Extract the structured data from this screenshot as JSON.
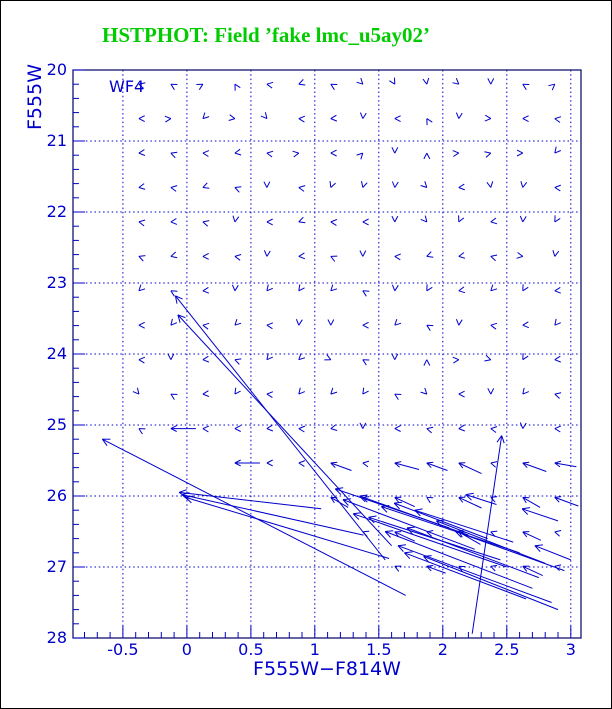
{
  "header": {
    "title": "HSTPHOT: Field ’fake lmc_u5ay02’",
    "title_color": "#00cc00"
  },
  "chart_data": {
    "type": "scatter",
    "subtype": "quiver-vector-field",
    "title": "HSTPHOT: Field ’fake lmc_u5ay02’",
    "xlabel": "F555W−F814W",
    "ylabel": "F555W",
    "annotation": "WF4",
    "xlim": [
      -0.89,
      3.08
    ],
    "ylim": [
      20,
      28
    ],
    "y_inverted": true,
    "grid": "dotted",
    "colors": {
      "accent_blue": "#0000cc",
      "title_green": "#00cc00",
      "frame": "#000066",
      "background": "#ffffff"
    },
    "x_ticks": {
      "major": [
        -0.5,
        0,
        0.5,
        1,
        1.5,
        2,
        2.5,
        3
      ],
      "labels": [
        "-0.5",
        "0",
        "0.5",
        "1",
        "1.5",
        "2",
        "2.5",
        "3"
      ],
      "minor_step": 0.1
    },
    "y_ticks": {
      "major": [
        20,
        21,
        22,
        23,
        24,
        25,
        26,
        27,
        28
      ],
      "labels": [
        "20",
        "21",
        "22",
        "23",
        "24",
        "25",
        "26",
        "27",
        "28"
      ],
      "minor_step": 0.2
    },
    "grid_x_lines": [
      -0.5,
      0,
      0.5,
      1,
      1.5,
      2,
      2.5,
      3
    ],
    "grid_y_lines": [
      20,
      21,
      22,
      23,
      24,
      25,
      26,
      27
    ],
    "vector_field": {
      "comment": "small recovered-photometry chevrons; col = col0 + col_step*(start+i); dirs entry = pointing angle deg (0=right,90=up) or [angle,shaft_px]",
      "col0": -0.375,
      "col_step": 0.25,
      "rows": [
        {
          "m": 20.2,
          "start": 0,
          "dirs": [
            165,
            150,
            30,
            120,
            170,
            200,
            150,
            315,
            300,
            280,
            320,
            270,
            150,
            40
          ]
        },
        {
          "m": 20.685,
          "start": 0,
          "dirs": [
            180,
            5,
            225,
            350,
            310,
            175,
            185,
            265,
            180,
            120,
            265,
            355,
            180,
            170
          ]
        },
        {
          "m": 21.17,
          "start": 0,
          "dirs": [
            185,
            160,
            175,
            190,
            170,
            10,
            180,
            45,
            270,
            90,
            5,
            15,
            0,
            230
          ]
        },
        {
          "m": 21.655,
          "start": 0,
          "dirs": [
            190,
            170,
            200,
            160,
            270,
            170,
            250,
            255,
            265,
            315,
            185,
            280,
            260,
            175
          ]
        },
        {
          "m": 22.14,
          "start": 0,
          "dirs": [
            170,
            185,
            165,
            260,
            180,
            200,
            175,
            180,
            270,
            310,
            245,
            190,
            265,
            240
          ]
        },
        {
          "m": 22.625,
          "start": 0,
          "dirs": [
            160,
            195,
            180,
            170,
            265,
            185,
            155,
            270,
            175,
            200,
            190,
            165,
            350,
            260
          ]
        },
        {
          "m": 23.11,
          "start": 0,
          "dirs": [
            225,
            150,
            185,
            265,
            230,
            235,
            225,
            150,
            265,
            240,
            190,
            225,
            240,
            185
          ]
        },
        {
          "m": 23.595,
          "start": 0,
          "dirs": [
            180,
            230,
            170,
            225,
            175,
            265,
            270,
            180,
            225,
            150,
            265,
            170,
            185,
            230
          ]
        },
        {
          "m": 24.08,
          "start": 0,
          "dirs": [
            175,
            270,
            185,
            160,
            230,
            225,
            335,
            150,
            270,
            90,
            5,
            345,
            240,
            185
          ]
        },
        {
          "m": 24.565,
          "start": 0,
          "dirs": [
            310,
            150,
            185,
            235,
            175,
            230,
            225,
            235,
            150,
            315,
            180,
            270,
            230,
            165
          ]
        },
        {
          "m": 25.05,
          "start": 0,
          "dirs": [
            150,
            [
              180,
              25
            ],
            175,
            180,
            185,
            175,
            190,
            270,
            180,
            165,
            185,
            170,
            265,
            175
          ]
        },
        {
          "m": 25.535,
          "start": 3,
          "dirs": [
            [
              180,
              25
            ],
            180,
            175,
            [
              160,
              22
            ],
            170,
            [
              165,
              25
            ],
            [
              160,
              22
            ],
            [
              155,
              25
            ],
            165,
            [
              160,
              25
            ],
            [
              170,
              22
            ]
          ]
        },
        {
          "m": 26.02,
          "start": 6,
          "dirs": [
            [
              150,
              20
            ],
            160,
            [
              155,
              22
            ],
            150,
            [
              155,
              25
            ],
            160,
            [
              150,
              20
            ],
            [
              160,
              25
            ]
          ]
        },
        {
          "m": 26.505,
          "start": 7,
          "dirs": [
            160,
            [
              155,
              22
            ],
            165,
            [
              150,
              25
            ],
            160,
            [
              155,
              20
            ],
            165
          ]
        },
        {
          "m": 26.99,
          "start": 8,
          "dirs": [
            155,
            [
              160,
              20
            ],
            150,
            160,
            [
              155,
              22
            ],
            165
          ]
        }
      ]
    },
    "long_vectors": {
      "comment": "large photometric-error arrows, [tail_color, tail_mag, head_color, head_mag]",
      "arrows": [
        [
          1.55,
          26.9,
          -0.09,
          23.18
        ],
        [
          1.6,
          26.7,
          -0.07,
          23.45
        ],
        [
          1.71,
          27.4,
          -0.66,
          25.2
        ],
        [
          1.05,
          26.18,
          -0.06,
          25.95
        ],
        [
          1.38,
          26.55,
          -0.04,
          25.98
        ],
        [
          1.58,
          26.88,
          -0.01,
          26.02
        ],
        [
          2.23,
          27.94,
          2.46,
          25.15
        ],
        [
          2.05,
          26.45,
          1.16,
          25.9
        ],
        [
          2.25,
          26.75,
          1.22,
          26.05
        ],
        [
          2.5,
          27.0,
          1.3,
          26.25
        ],
        [
          2.2,
          26.55,
          1.35,
          26.0
        ],
        [
          2.45,
          26.9,
          1.42,
          26.3
        ],
        [
          2.7,
          27.3,
          1.55,
          26.5
        ],
        [
          2.6,
          26.8,
          1.52,
          26.15
        ],
        [
          2.85,
          27.5,
          1.65,
          26.7
        ],
        [
          2.35,
          26.6,
          1.62,
          26.1
        ],
        [
          2.75,
          27.15,
          1.72,
          26.45
        ],
        [
          2.9,
          27.6,
          1.85,
          26.85
        ],
        [
          2.55,
          26.65,
          1.78,
          26.2
        ],
        [
          2.95,
          27.05,
          2.1,
          26.5
        ],
        [
          2.8,
          26.95,
          1.95,
          26.35
        ],
        [
          2.65,
          27.45,
          1.7,
          26.8
        ],
        [
          2.9,
          26.35,
          2.62,
          26.18
        ],
        [
          3.0,
          26.9,
          2.72,
          26.7
        ],
        [
          2.42,
          26.12,
          2.18,
          25.98
        ]
      ]
    }
  }
}
